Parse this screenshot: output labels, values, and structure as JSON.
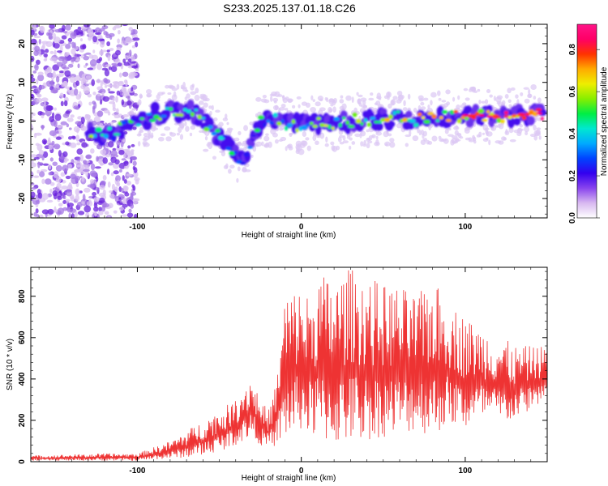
{
  "figure_title": "S233.2025.137.01.18.C26",
  "chart_data": [
    {
      "type": "heatmap",
      "title": "S233.2025.137.01.18.C26",
      "xlabel": "Height of straight line (km)",
      "ylabel": "Frequency (Hz)",
      "xlim": [
        -165,
        150
      ],
      "ylim": [
        -25,
        25
      ],
      "xticks": [
        -100,
        0,
        100
      ],
      "yticks": [
        -20,
        -10,
        0,
        10,
        20
      ],
      "colorbar": {
        "label": "Normalized spectral amplitude",
        "range": [
          0,
          0.92
        ],
        "ticks": [
          0,
          0.2,
          0.4,
          0.6,
          0.8
        ],
        "colors": [
          "#ffffff",
          "#d8b8f0",
          "#8844ee",
          "#3300ee",
          "#0044ff",
          "#00aaff",
          "#00e8d0",
          "#00ee44",
          "#88ee00",
          "#eeee00",
          "#ffaa00",
          "#ff3300",
          "#ff0066",
          "#ff1488"
        ]
      },
      "ridge": {
        "x": [
          -130,
          -120,
          -110,
          -100,
          -90,
          -80,
          -70,
          -65,
          -60,
          -55,
          -50,
          -45,
          -40,
          -36,
          -33,
          -30,
          -27,
          -24,
          -20,
          -15,
          -10,
          -5,
          0,
          10,
          20,
          30,
          40,
          50,
          60,
          70,
          80,
          90,
          100,
          110,
          120,
          130,
          140,
          148
        ],
        "frequency": [
          -3,
          -4,
          -2,
          0,
          1.5,
          2.5,
          3,
          2,
          0,
          -2,
          -4,
          -6,
          -8,
          -10,
          -8,
          -5,
          -2,
          0,
          0.5,
          0,
          -0.5,
          -1,
          -1,
          -0.5,
          -0.5,
          0,
          0.5,
          0.5,
          1,
          0.5,
          0.5,
          1,
          1.5,
          1.5,
          1,
          1.5,
          2,
          2
        ],
        "amplitude": [
          0.35,
          0.3,
          0.3,
          0.3,
          0.35,
          0.35,
          0.4,
          0.35,
          0.35,
          0.3,
          0.3,
          0.3,
          0.3,
          0.3,
          0.25,
          0.25,
          0.3,
          0.35,
          0.3,
          0.35,
          0.35,
          0.4,
          0.4,
          0.4,
          0.45,
          0.4,
          0.4,
          0.45,
          0.45,
          0.5,
          0.5,
          0.55,
          0.6,
          0.6,
          0.65,
          0.7,
          0.75,
          0.8
        ]
      },
      "noise_x_range": [
        -165,
        -100
      ]
    },
    {
      "type": "line",
      "xlabel": "Height of straight line (km)",
      "ylabel": "SNR (10 * v/v)",
      "xlim": [
        -165,
        150
      ],
      "ylim": [
        0,
        940
      ],
      "xticks": [
        -100,
        0,
        100
      ],
      "yticks": [
        0,
        200,
        400,
        600,
        800
      ],
      "series": [
        {
          "name": "SNR",
          "color": "#ee3333",
          "envelope_x": [
            -165,
            -140,
            -120,
            -100,
            -90,
            -80,
            -70,
            -60,
            -50,
            -40,
            -35,
            -30,
            -25,
            -20,
            -15,
            -10,
            -5,
            0,
            5,
            10,
            20,
            30,
            40,
            50,
            60,
            70,
            80,
            90,
            100,
            110,
            120,
            130,
            140,
            150
          ],
          "envelope_min": [
            5,
            5,
            5,
            5,
            10,
            15,
            20,
            30,
            50,
            80,
            100,
            120,
            80,
            60,
            80,
            100,
            120,
            150,
            120,
            100,
            80,
            90,
            100,
            120,
            120,
            150,
            120,
            180,
            150,
            200,
            180,
            200,
            250,
            300
          ],
          "envelope_max": [
            30,
            35,
            40,
            40,
            70,
            100,
            150,
            200,
            250,
            300,
            380,
            420,
            300,
            250,
            400,
            820,
            830,
            850,
            800,
            920,
            880,
            940,
            900,
            860,
            850,
            800,
            880,
            780,
            700,
            650,
            620,
            560,
            560,
            560
          ]
        }
      ]
    }
  ]
}
